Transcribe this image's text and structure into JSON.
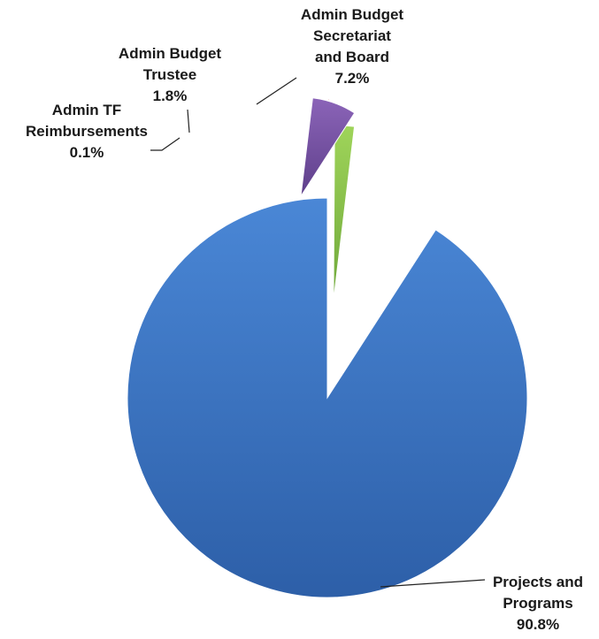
{
  "chart_data": {
    "type": "pie",
    "title": "",
    "slices": [
      {
        "label_lines": [
          "Projects and",
          "Programs",
          "90.8%"
        ],
        "name": "Projects and Programs",
        "value": 90.8,
        "color": "#3b73bf"
      },
      {
        "label_lines": [
          "Admin TF",
          "Reimbursements",
          "0.1%"
        ],
        "name": "Admin TF Reimbursements",
        "value": 0.1,
        "color": "#c0392b"
      },
      {
        "label_lines": [
          "Admin Budget",
          "Trustee",
          "1.8%"
        ],
        "name": "Admin Budget Trustee",
        "value": 1.8,
        "color": "#8cc641"
      },
      {
        "label_lines": [
          "Admin Budget",
          "Secretariat",
          "and Board",
          "7.2%"
        ],
        "name": "Admin Budget Secretariat and Board",
        "value": 7.2,
        "color": "#7b56a6"
      }
    ],
    "exploded": true,
    "legend": "none"
  }
}
